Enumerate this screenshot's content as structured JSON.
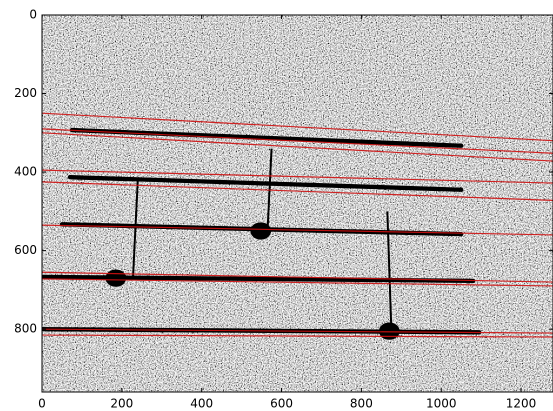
{
  "chart_data": {
    "type": "image",
    "xlim": [
      0,
      1280
    ],
    "ylim": [
      960,
      0
    ],
    "xticks": [
      0,
      200,
      400,
      600,
      800,
      1000,
      1200
    ],
    "yticks": [
      0,
      200,
      400,
      600,
      800
    ]
  }
}
